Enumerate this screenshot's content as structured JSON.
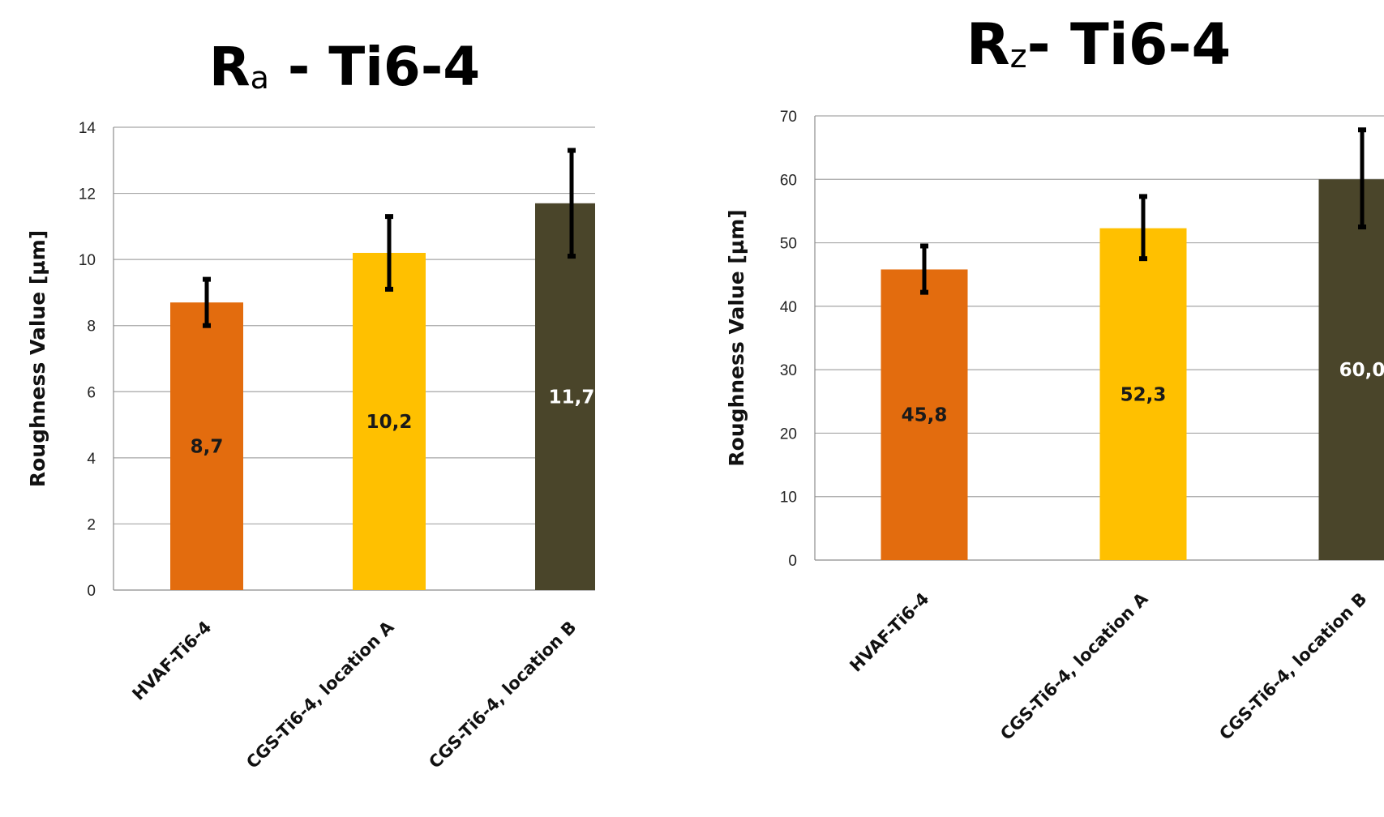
{
  "chart_data": [
    {
      "type": "bar",
      "title_main": "R",
      "title_sub": "a",
      "title_rest": " - Ti6-4",
      "ylabel": "Roughness Value [µm]",
      "xlabel": "",
      "ylim": [
        0,
        14
      ],
      "yticks": [
        0,
        2,
        4,
        6,
        8,
        10,
        12,
        14
      ],
      "ytick_labels": [
        "0",
        "2",
        "4",
        "6",
        "8",
        "10",
        "12",
        "14"
      ],
      "grid": true,
      "categories": [
        "HVAF-Ti6-4",
        "CGS-Ti6-4, location A",
        "CGS-Ti6-4, location B"
      ],
      "values": [
        8.7,
        10.2,
        11.7
      ],
      "data_labels": [
        "8,7",
        "10,2",
        "11,7"
      ],
      "error_low": [
        8.0,
        9.1,
        10.1
      ],
      "error_high": [
        9.4,
        11.3,
        13.3
      ],
      "colors": [
        "#E36C0E",
        "#FFC000",
        "#4A452A"
      ],
      "label_colors": [
        "#1a1a1a",
        "#1a1a1a",
        "#ffffff"
      ]
    },
    {
      "type": "bar",
      "title_main": "R",
      "title_sub": "z",
      "title_rest": "- Ti6-4",
      "ylabel": "Roughness Value [µm]",
      "xlabel": "",
      "ylim": [
        0,
        70
      ],
      "yticks": [
        0,
        10,
        20,
        30,
        40,
        50,
        60,
        70
      ],
      "ytick_labels": [
        "0",
        "10",
        "20",
        "30",
        "40",
        "50",
        "60",
        "70"
      ],
      "grid": true,
      "categories": [
        "HVAF-Ti6-4",
        "CGS-Ti6-4, location A",
        "CGS-Ti6-4, location B"
      ],
      "values": [
        45.8,
        52.3,
        60.0
      ],
      "data_labels": [
        "45,8",
        "52,3",
        "60,0"
      ],
      "error_low": [
        42.2,
        47.5,
        52.5
      ],
      "error_high": [
        49.5,
        57.3,
        67.8
      ],
      "colors": [
        "#E36C0E",
        "#FFC000",
        "#4A452A"
      ],
      "label_colors": [
        "#1a1a1a",
        "#1a1a1a",
        "#ffffff"
      ]
    }
  ]
}
